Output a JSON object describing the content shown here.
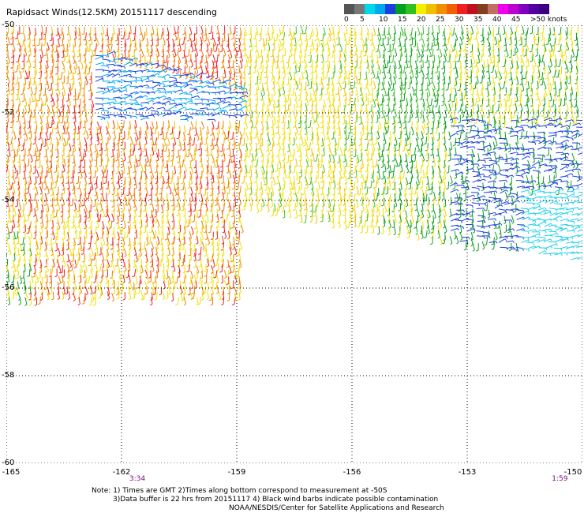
{
  "title": "Rapidsact Winds(12.5KM) 20151117 descending",
  "legend": {
    "labels": [
      "0",
      "5",
      "10",
      "15",
      "20",
      "25",
      "30",
      "35",
      "40",
      "45",
      ">50 knots"
    ],
    "colors": [
      "#555555",
      "#777777",
      "#00d8e8",
      "#00a8f0",
      "#1a40e0",
      "#00a020",
      "#30c020",
      "#f0f000",
      "#f0c000",
      "#f09000",
      "#f06000",
      "#f02020",
      "#c01020",
      "#804020",
      "#c07060",
      "#f000f0",
      "#c000d0",
      "#8000c0",
      "#5000a0",
      "#3a0080"
    ]
  },
  "map": {
    "latitudes": [
      "-50",
      "-52",
      "-54",
      "-56",
      "-58",
      "-60"
    ],
    "longitudes": [
      "-165",
      "-162",
      "-159",
      "-156",
      "-153",
      "-150"
    ],
    "time_labels": [
      {
        "lon": -162,
        "text": "3:34"
      },
      {
        "lon": -151,
        "text": "1:59"
      }
    ]
  },
  "notes": {
    "line1": "Note: 1) Times are GMT 2)Times along bottom correspond to measurement at -50S",
    "line2": "3)Data buffer is 22 hrs from 20151117 4) Black wind barbs indicate possible contamination",
    "line3": "NOAA/NESDIS/Center for Satellite Applications and Research"
  }
}
